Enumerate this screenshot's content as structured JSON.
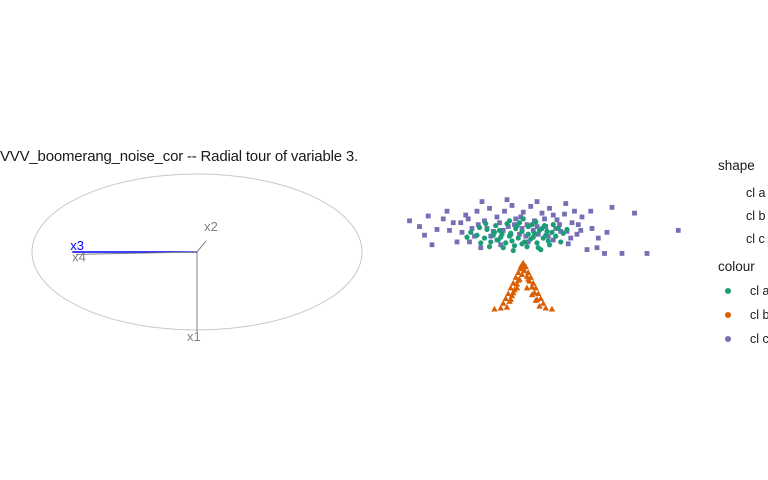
{
  "title": "VVV_boomerang_noise_cor -- Radial tour of variable 3.",
  "axes_labels": [
    "x1",
    "x2",
    "x3",
    "x4"
  ],
  "highlight_variable": "x3",
  "colors": {
    "highlight": "#0000ff",
    "axis": "#808080",
    "circle": "#c8c8c8",
    "cl_a": "#1b9e77",
    "cl_b": "#d95f02",
    "cl_c": "#7570b3"
  },
  "legend": {
    "shape_title": "shape",
    "shape_items": [
      "cl a",
      "cl b",
      "cl c"
    ],
    "colour_title": "colour",
    "colour_items": [
      "cl a",
      "cl b",
      "cl c"
    ]
  },
  "chart_data": {
    "type": "scatter",
    "title": "VVV_boomerang_noise_cor -- Radial tour of variable 3.",
    "xlabel": "",
    "ylabel": "",
    "grid": false,
    "legend_position": "right",
    "axes_projection": [
      {
        "name": "x1",
        "x": 0.0,
        "y": -1.0
      },
      {
        "name": "x2",
        "x": 0.07,
        "y": 0.14
      },
      {
        "name": "x3",
        "x": -0.96,
        "y": 0.0
      },
      {
        "name": "x4",
        "x": -0.93,
        "y": -0.03
      }
    ],
    "series": [
      {
        "name": "cl a",
        "shape": "circle",
        "color": "#1b9e77",
        "points": [
          [
            -0.34,
            0.13
          ],
          [
            -0.28,
            0.11
          ],
          [
            -0.22,
            0.08
          ],
          [
            -0.16,
            0.06
          ],
          [
            -0.1,
            0.04
          ],
          [
            -0.05,
            0.12
          ],
          [
            0.0,
            0.09
          ],
          [
            0.05,
            0.14
          ],
          [
            0.1,
            0.07
          ],
          [
            0.14,
            0.1
          ],
          [
            0.19,
            0.05
          ],
          [
            0.24,
            0.08
          ],
          [
            0.29,
            0.12
          ],
          [
            -0.3,
            0.02
          ],
          [
            -0.25,
            -0.02
          ],
          [
            -0.19,
            0.0
          ],
          [
            -0.13,
            -0.03
          ],
          [
            -0.08,
            -0.01
          ],
          [
            -0.03,
            0.02
          ],
          [
            0.02,
            -0.02
          ],
          [
            0.07,
            0.01
          ],
          [
            0.12,
            -0.03
          ],
          [
            0.17,
            0.02
          ],
          [
            0.21,
            -0.01
          ],
          [
            -0.36,
            0.05
          ],
          [
            -0.41,
            0.08
          ],
          [
            -0.21,
            0.15
          ],
          [
            -0.12,
            0.17
          ],
          [
            -0.02,
            0.18
          ],
          [
            0.08,
            0.16
          ],
          [
            0.18,
            0.15
          ],
          [
            0.27,
            0.04
          ],
          [
            0.33,
            0.07
          ],
          [
            -0.06,
            -0.06
          ],
          [
            0.04,
            -0.07
          ],
          [
            0.13,
            -0.08
          ],
          [
            -0.15,
            -0.08
          ],
          [
            0.22,
            -0.05
          ],
          [
            -0.26,
            -0.07
          ],
          [
            0.31,
            -0.02
          ],
          [
            -0.09,
            0.07
          ],
          [
            0.09,
            0.03
          ],
          [
            -0.18,
            0.1
          ],
          [
            0.16,
            0.12
          ],
          [
            0.0,
            -0.04
          ],
          [
            -0.33,
            -0.03
          ],
          [
            0.25,
            0.16
          ],
          [
            -0.23,
            0.05
          ],
          [
            0.05,
            0.06
          ],
          [
            -0.04,
            0.15
          ],
          [
            0.11,
            0.19
          ],
          [
            -0.1,
            0.2
          ],
          [
            0.2,
            0.09
          ],
          [
            -0.29,
            0.17
          ],
          [
            0.36,
            0.11
          ],
          [
            -0.44,
            0.03
          ],
          [
            0.01,
            0.22
          ],
          [
            -0.17,
            0.03
          ],
          [
            0.15,
            -0.1
          ],
          [
            -0.07,
            -0.11
          ]
        ]
      },
      {
        "name": "cl b",
        "shape": "triangle",
        "color": "#d95f02",
        "points": [
          [
            -0.17,
            -0.71
          ],
          [
            -0.15,
            -0.66
          ],
          [
            -0.13,
            -0.61
          ],
          [
            -0.11,
            -0.56
          ],
          [
            -0.09,
            -0.5
          ],
          [
            -0.07,
            -0.45
          ],
          [
            -0.05,
            -0.39
          ],
          [
            -0.03,
            -0.34
          ],
          [
            -0.01,
            -0.28
          ],
          [
            0.01,
            -0.24
          ],
          [
            0.03,
            -0.28
          ],
          [
            0.05,
            -0.34
          ],
          [
            0.07,
            -0.39
          ],
          [
            0.09,
            -0.45
          ],
          [
            0.11,
            -0.5
          ],
          [
            0.13,
            -0.56
          ],
          [
            0.15,
            -0.61
          ],
          [
            0.17,
            -0.66
          ],
          [
            0.19,
            -0.71
          ],
          [
            -0.12,
            -0.7
          ],
          [
            -0.1,
            -0.64
          ],
          [
            -0.08,
            -0.58
          ],
          [
            -0.06,
            -0.52
          ],
          [
            -0.04,
            -0.46
          ],
          [
            -0.02,
            -0.41
          ],
          [
            0.0,
            -0.36
          ],
          [
            0.02,
            -0.32
          ],
          [
            0.04,
            -0.38
          ],
          [
            0.06,
            -0.43
          ],
          [
            0.08,
            -0.49
          ],
          [
            0.1,
            -0.55
          ],
          [
            0.12,
            -0.62
          ],
          [
            0.14,
            -0.69
          ],
          [
            -0.22,
            -0.72
          ],
          [
            0.24,
            -0.72
          ],
          [
            -0.01,
            -0.3
          ],
          [
            0.0,
            -0.26
          ],
          [
            0.02,
            -0.27
          ],
          [
            -0.03,
            -0.42
          ],
          [
            0.05,
            -0.41
          ],
          [
            -0.07,
            -0.55
          ],
          [
            0.08,
            -0.57
          ],
          [
            -0.09,
            -0.62
          ],
          [
            0.11,
            -0.63
          ],
          [
            -0.04,
            -0.5
          ],
          [
            0.04,
            -0.5
          ]
        ]
      },
      {
        "name": "cl c",
        "shape": "square",
        "color": "#7570b3",
        "points": [
          [
            -0.9,
            0.2
          ],
          [
            -0.82,
            0.14
          ],
          [
            -0.78,
            0.05
          ],
          [
            -0.72,
            -0.05
          ],
          [
            -0.63,
            0.22
          ],
          [
            -0.58,
            0.1
          ],
          [
            -0.52,
            -0.02
          ],
          [
            -0.49,
            0.18
          ],
          [
            -0.45,
            0.26
          ],
          [
            -0.4,
            0.12
          ],
          [
            -0.36,
            0.3
          ],
          [
            -0.33,
            -0.08
          ],
          [
            -0.3,
            0.2
          ],
          [
            -0.26,
            0.33
          ],
          [
            -0.23,
            0.09
          ],
          [
            -0.2,
            0.24
          ],
          [
            -0.17,
            -0.05
          ],
          [
            -0.14,
            0.3
          ],
          [
            -0.11,
            0.14
          ],
          [
            -0.08,
            0.36
          ],
          [
            -0.05,
            0.22
          ],
          [
            -0.02,
            0.06
          ],
          [
            0.01,
            0.29
          ],
          [
            0.04,
            0.16
          ],
          [
            0.07,
            0.35
          ],
          [
            0.1,
            0.2
          ],
          [
            0.13,
            0.06
          ],
          [
            0.16,
            0.28
          ],
          [
            0.19,
            0.14
          ],
          [
            0.22,
            0.33
          ],
          [
            0.25,
            0.0
          ],
          [
            0.28,
            0.21
          ],
          [
            0.31,
            0.09
          ],
          [
            0.34,
            0.27
          ],
          [
            0.37,
            -0.04
          ],
          [
            0.4,
            0.18
          ],
          [
            0.44,
            0.06
          ],
          [
            0.48,
            0.24
          ],
          [
            0.52,
            -0.1
          ],
          [
            0.56,
            0.12
          ],
          [
            0.61,
            0.02
          ],
          [
            0.66,
            -0.14
          ],
          [
            0.72,
            0.34
          ],
          [
            0.8,
            -0.14
          ],
          [
            0.9,
            0.28
          ],
          [
            1.0,
            -0.14
          ],
          [
            1.25,
            0.1
          ],
          [
            -0.6,
            0.3
          ],
          [
            -0.38,
            0.04
          ],
          [
            -0.28,
            0.12
          ],
          [
            -0.18,
            0.18
          ],
          [
            -0.09,
            0.06
          ],
          [
            0.0,
            0.12
          ],
          [
            0.09,
            0.1
          ],
          [
            0.18,
            0.22
          ],
          [
            0.27,
            0.12
          ],
          [
            0.36,
            0.09
          ],
          [
            0.45,
            0.16
          ],
          [
            -0.48,
            0.08
          ],
          [
            -0.42,
            -0.02
          ],
          [
            -0.35,
            0.16
          ],
          [
            -0.25,
            0.04
          ],
          [
            -0.15,
            0.1
          ],
          [
            -0.06,
            0.16
          ],
          [
            0.03,
            0.04
          ],
          [
            0.12,
            0.14
          ],
          [
            0.21,
            0.04
          ],
          [
            0.3,
            0.16
          ],
          [
            0.39,
            0.02
          ],
          [
            0.47,
            0.1
          ],
          [
            -0.55,
            0.18
          ],
          [
            -0.68,
            0.11
          ],
          [
            -0.12,
            0.42
          ],
          [
            0.12,
            0.4
          ],
          [
            0.35,
            0.38
          ],
          [
            -0.32,
            0.4
          ],
          [
            0.55,
            0.3
          ],
          [
            -0.75,
            0.25
          ],
          [
            0.6,
            -0.08
          ],
          [
            0.05,
            -0.02
          ],
          [
            -0.2,
            0.0
          ],
          [
            0.25,
            0.26
          ],
          [
            -0.43,
            0.22
          ],
          [
            0.42,
            0.3
          ],
          [
            0.68,
            0.08
          ],
          [
            -0.01,
            0.24
          ]
        ]
      }
    ]
  }
}
